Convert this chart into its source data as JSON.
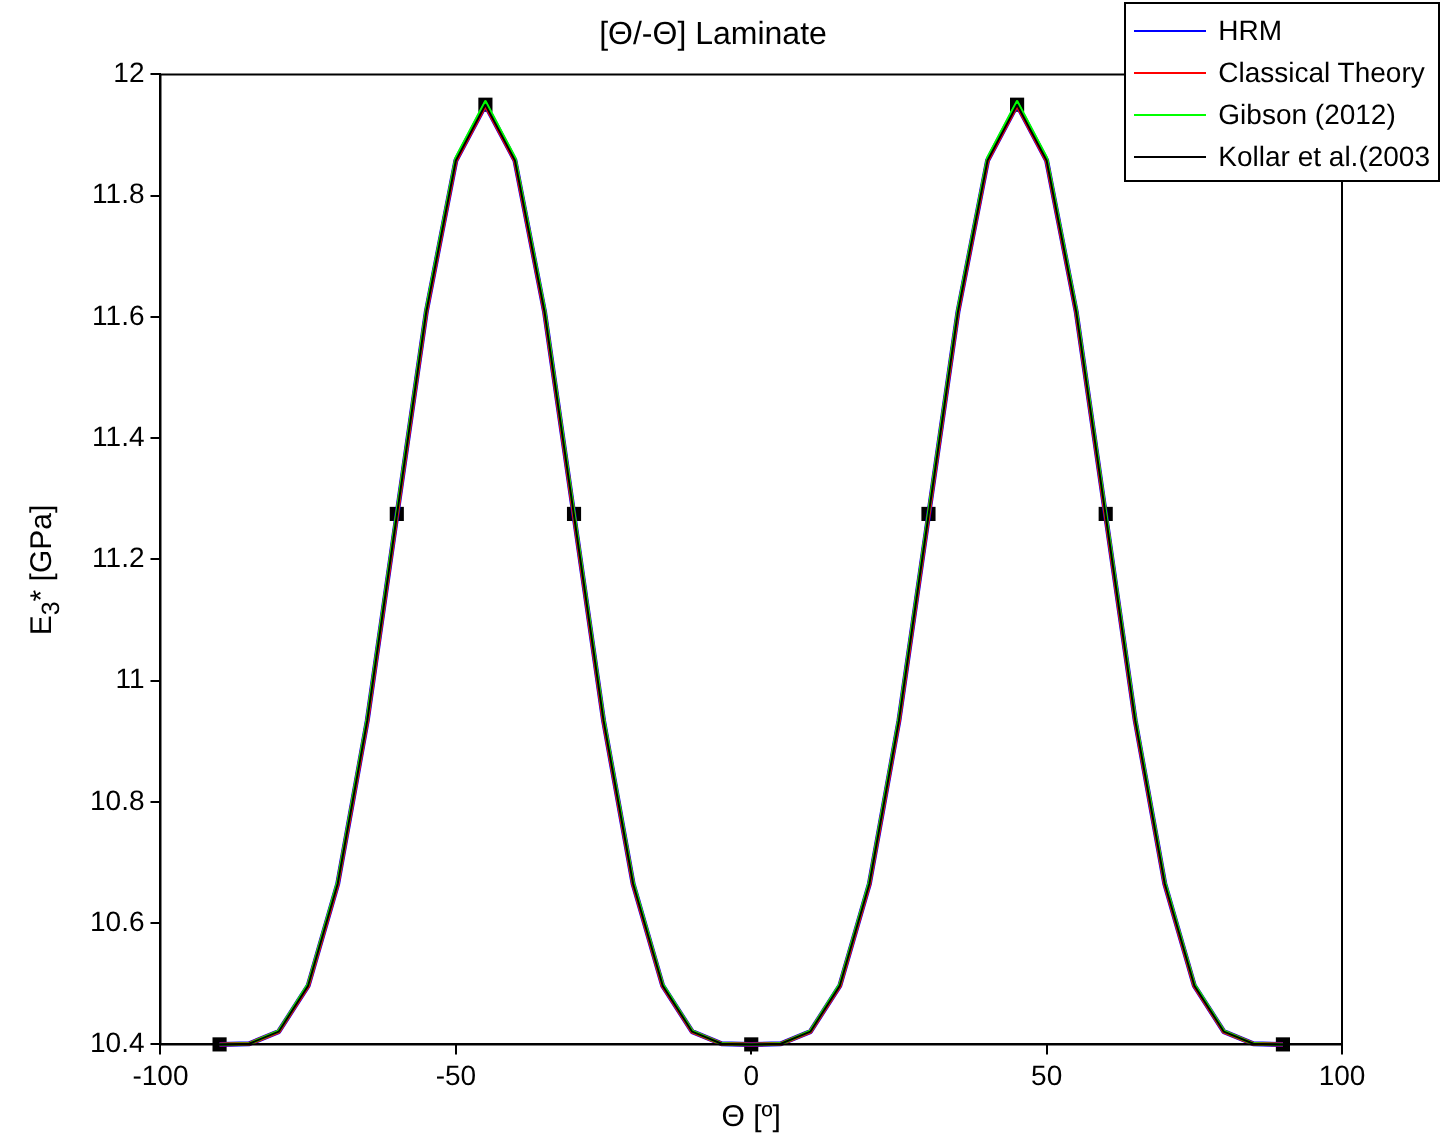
{
  "chart_data": {
    "type": "line",
    "title": "[Θ/-Θ] Laminate",
    "xlabel": "Θ [º]",
    "ylabel": "E$_{3}$* [GPa]",
    "x": [
      -90,
      -85,
      -80,
      -75,
      -70,
      -65,
      -60,
      -55,
      -50,
      -45,
      -40,
      -35,
      -30,
      -25,
      -20,
      -15,
      -10,
      -5,
      0,
      5,
      10,
      15,
      20,
      25,
      30,
      35,
      40,
      45,
      50,
      55,
      60,
      65,
      70,
      75,
      80,
      85,
      90
    ],
    "series": [
      {
        "name": "HRM",
        "color": "#0000ff",
        "values": [
          10.4,
          10.401,
          10.421,
          10.497,
          10.665,
          10.934,
          11.272,
          11.609,
          11.858,
          11.95,
          11.858,
          11.609,
          11.272,
          10.934,
          10.665,
          10.497,
          10.421,
          10.401,
          10.4,
          10.401,
          10.421,
          10.497,
          10.665,
          10.934,
          11.272,
          11.609,
          11.858,
          11.95,
          11.858,
          11.609,
          11.272,
          10.934,
          10.665,
          10.497,
          10.421,
          10.401,
          10.4
        ]
      },
      {
        "name": "Classical Theory",
        "color": "#ff0000",
        "values": [
          10.4,
          10.401,
          10.421,
          10.497,
          10.665,
          10.934,
          11.272,
          11.609,
          11.858,
          11.95,
          11.858,
          11.609,
          11.272,
          10.934,
          10.665,
          10.497,
          10.421,
          10.401,
          10.4,
          10.401,
          10.421,
          10.497,
          10.665,
          10.934,
          11.272,
          11.609,
          11.858,
          11.95,
          11.858,
          11.609,
          11.272,
          10.934,
          10.665,
          10.497,
          10.421,
          10.401,
          10.4
        ]
      },
      {
        "name": "Gibson (2012)",
        "color": "#00ff00",
        "values": [
          10.4,
          10.401,
          10.422,
          10.499,
          10.668,
          10.938,
          11.276,
          11.613,
          11.862,
          11.955,
          11.862,
          11.613,
          11.276,
          10.938,
          10.668,
          10.499,
          10.422,
          10.401,
          10.4,
          10.401,
          10.422,
          10.499,
          10.668,
          10.938,
          11.276,
          11.613,
          11.862,
          11.955,
          11.862,
          11.613,
          11.276,
          10.938,
          10.668,
          10.499,
          10.422,
          10.401,
          10.4
        ]
      },
      {
        "name": "Kollar et al.(2003",
        "color": "#000000",
        "values": [
          10.4,
          10.401,
          10.421,
          10.497,
          10.665,
          10.934,
          11.272,
          11.609,
          11.858,
          11.95,
          11.858,
          11.609,
          11.272,
          10.934,
          10.665,
          10.497,
          10.421,
          10.401,
          10.4,
          10.401,
          10.421,
          10.497,
          10.665,
          10.934,
          11.272,
          11.609,
          11.858,
          11.95,
          11.858,
          11.609,
          11.272,
          10.934,
          10.665,
          10.497,
          10.421,
          10.401,
          10.4
        ]
      },
      {
        "type": "scatter",
        "color": "#000000",
        "marker": "square",
        "x": [
          -90,
          -60,
          -45,
          -30,
          0,
          30,
          45,
          60,
          90
        ],
        "values": [
          10.4,
          11.275,
          11.95,
          11.275,
          10.4,
          11.275,
          11.95,
          11.275,
          10.4
        ]
      }
    ],
    "xlim": [
      -100,
      100
    ],
    "xticks": [
      -100,
      -50,
      0,
      50,
      100
    ],
    "ylim": [
      10.4,
      12
    ],
    "yticks": [
      10.4,
      10.6,
      10.8,
      11,
      11.2,
      11.4,
      11.6,
      11.8,
      12
    ],
    "legend": "top right",
    "grid": false
  }
}
